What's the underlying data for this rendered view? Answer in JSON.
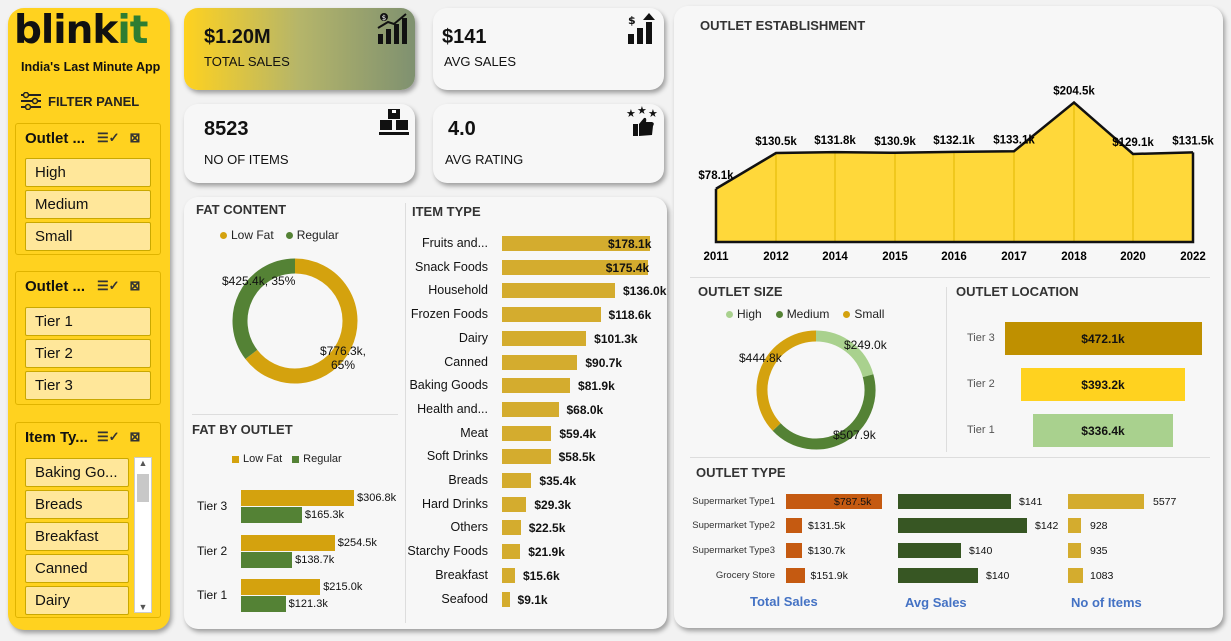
{
  "brand": {
    "logo_main": "blink",
    "logo_accent": "it",
    "tagline": "India's Last Minute App"
  },
  "filter_panel": {
    "title": "FILTER PANEL",
    "slicers": [
      {
        "title": "Outlet ...",
        "items": [
          "High",
          "Medium",
          "Small"
        ]
      },
      {
        "title": "Outlet ...",
        "items": [
          "Tier 1",
          "Tier 2",
          "Tier 3"
        ]
      },
      {
        "title": "Item Ty...",
        "items": [
          "Baking Go...",
          "Breads",
          "Breakfast",
          "Canned",
          "Dairy"
        ]
      }
    ]
  },
  "kpis": [
    {
      "value": "$1.20M",
      "label": "TOTAL SALES",
      "icon": "sales-chart-icon"
    },
    {
      "value": "$141",
      "label": "AVG SALES",
      "icon": "avg-sales-icon"
    },
    {
      "value": "8523",
      "label": "NO OF ITEMS",
      "icon": "items-boxes-icon"
    },
    {
      "value": "4.0",
      "label": "AVG RATING",
      "icon": "rating-thumbs-icon"
    }
  ],
  "colors": {
    "accent_yellow": "#ffd21f",
    "gold": "#d4a20e",
    "green": "#548235",
    "area_fill": "#ffd83a",
    "orange": "#c55a11",
    "dark_green": "#375623",
    "light_green": "#a9d18e"
  },
  "fat_content": {
    "title": "FAT CONTENT",
    "chart_data": {
      "type": "pie",
      "labels": [
        "Low Fat",
        "Regular"
      ],
      "values": [
        776.3,
        425.4
      ],
      "data_labels": [
        "$776.3k, 65%",
        "$425.4k, 35%"
      ]
    }
  },
  "fat_by_outlet": {
    "title": "FAT BY OUTLET",
    "chart_data": {
      "type": "bar",
      "categories": [
        "Tier 3",
        "Tier 2",
        "Tier 1"
      ],
      "series": [
        {
          "name": "Low Fat",
          "values": [
            306.8,
            254.5,
            215.0
          ],
          "labels": [
            "$306.8k",
            "$254.5k",
            "$215.0k"
          ]
        },
        {
          "name": "Regular",
          "values": [
            165.3,
            138.7,
            121.3
          ],
          "labels": [
            "$165.3k",
            "$138.7k",
            "$121.3k"
          ]
        }
      ]
    }
  },
  "item_type": {
    "title": "ITEM TYPE",
    "chart_data": {
      "type": "bar",
      "categories": [
        "Fruits and...",
        "Snack Foods",
        "Household",
        "Frozen Foods",
        "Dairy",
        "Canned",
        "Baking Goods",
        "Health and...",
        "Meat",
        "Soft Drinks",
        "Breads",
        "Hard Drinks",
        "Others",
        "Starchy Foods",
        "Breakfast",
        "Seafood"
      ],
      "values": [
        178.1,
        175.4,
        136.0,
        118.6,
        101.3,
        90.7,
        81.9,
        68.0,
        59.4,
        58.5,
        35.4,
        29.3,
        22.5,
        21.9,
        15.6,
        9.1
      ],
      "labels": [
        "$178.1k",
        "$175.4k",
        "$136.0k",
        "$118.6k",
        "$101.3k",
        "$90.7k",
        "$81.9k",
        "$68.0k",
        "$59.4k",
        "$58.5k",
        "$35.4k",
        "$29.3k",
        "$22.5k",
        "$21.9k",
        "$15.6k",
        "$9.1k"
      ]
    }
  },
  "outlet_establishment": {
    "title": "OUTLET ESTABLISHMENT",
    "chart_data": {
      "type": "area",
      "x": [
        "2011",
        "2012",
        "2014",
        "2015",
        "2016",
        "2017",
        "2018",
        "2020",
        "2022"
      ],
      "values": [
        78.1,
        130.5,
        131.8,
        130.9,
        132.1,
        133.1,
        204.5,
        129.1,
        131.5
      ],
      "labels": [
        "$78.1k",
        "$130.5k",
        "$131.8k",
        "$130.9k",
        "$132.1k",
        "$133.1k",
        "$204.5k",
        "$129.1k",
        "$131.5k"
      ]
    }
  },
  "outlet_size": {
    "title": "OUTLET SIZE",
    "chart_data": {
      "type": "pie",
      "labels": [
        "High",
        "Medium",
        "Small"
      ],
      "values": [
        249.0,
        507.9,
        444.8
      ],
      "data_labels": [
        "$249.0k",
        "$507.9k",
        "$444.8k"
      ]
    }
  },
  "outlet_location": {
    "title": "OUTLET LOCATION",
    "chart_data": {
      "type": "bar",
      "categories": [
        "Tier 3",
        "Tier 2",
        "Tier 1"
      ],
      "values": [
        472.1,
        393.2,
        336.4
      ],
      "labels": [
        "$472.1k",
        "$393.2k",
        "$336.4k"
      ]
    }
  },
  "outlet_type": {
    "title": "OUTLET TYPE",
    "chart_data": {
      "type": "bar",
      "categories": [
        "Supermarket Type1",
        "Supermarket Type2",
        "Supermarket Type3",
        "Grocery Store"
      ],
      "series": [
        {
          "name": "Total Sales",
          "values": [
            787.5,
            131.5,
            130.7,
            151.9
          ],
          "labels": [
            "$787.5k",
            "$131.5k",
            "$130.7k",
            "$151.9k"
          ]
        },
        {
          "name": "Avg Sales",
          "values": [
            141,
            142,
            140,
            140
          ],
          "labels": [
            "$141",
            "$142",
            "$140",
            "$140"
          ]
        },
        {
          "name": "No of Items",
          "values": [
            5577,
            928,
            935,
            1083
          ],
          "labels": [
            "5577",
            "928",
            "935",
            "1083"
          ]
        }
      ]
    }
  }
}
